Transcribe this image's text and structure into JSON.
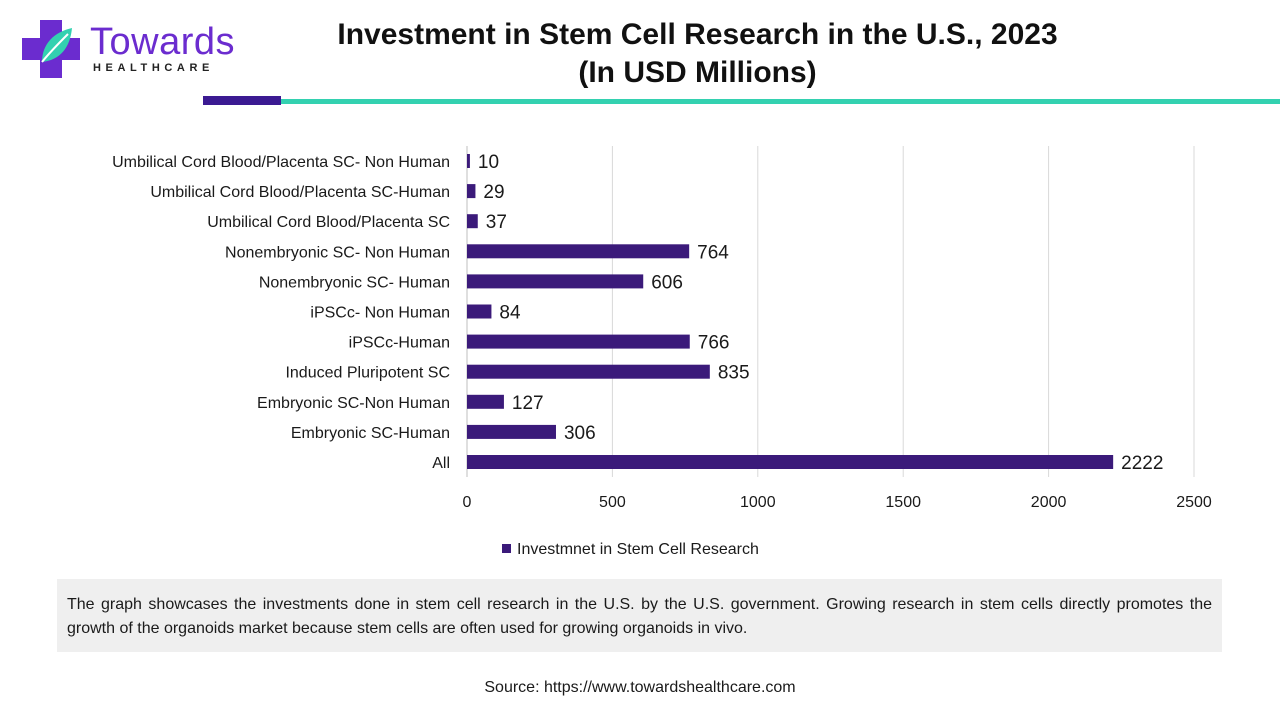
{
  "logo": {
    "name": "Towards",
    "tagline": "HEALTHCARE",
    "colors": {
      "cross": "#6b2ccf",
      "leaf": "#33d1b0"
    }
  },
  "title": {
    "line1": "Investment in Stem Cell Research in the U.S., 2023",
    "line2": "(In USD Millions)"
  },
  "chart_data": {
    "type": "bar",
    "orientation": "horizontal",
    "categories": [
      "Umbilical Cord Blood/Placenta SC- Non Human",
      "Umbilical Cord Blood/Placenta SC-Human",
      "Umbilical Cord Blood/Placenta SC",
      "Nonembryonic SC- Non Human",
      "Nonembryonic SC- Human",
      "iPSCc- Non Human",
      "iPSCc-Human",
      "Induced Pluripotent SC",
      "Embryonic SC-Non Human",
      "Embryonic SC-Human",
      "All"
    ],
    "series": [
      {
        "name": "Investmnet in Stem Cell Research",
        "values": [
          10,
          29,
          37,
          764,
          606,
          84,
          766,
          835,
          127,
          306,
          2222
        ],
        "color": "#3b1a7a"
      }
    ],
    "xlim": [
      0,
      2500
    ],
    "xticks": [
      "0",
      "500",
      "1000",
      "1500",
      "2000",
      "2500"
    ],
    "grid": true,
    "legend": "bottom-center",
    "data_labels": true
  },
  "caption": "The graph showcases the investments done in stem cell research in the U.S. by the U.S. government. Growing research in stem cells directly promotes the growth of the organoids market because stem cells are often used for growing organoids in vivo.",
  "source": "Source: https://www.towardshealthcare.com"
}
